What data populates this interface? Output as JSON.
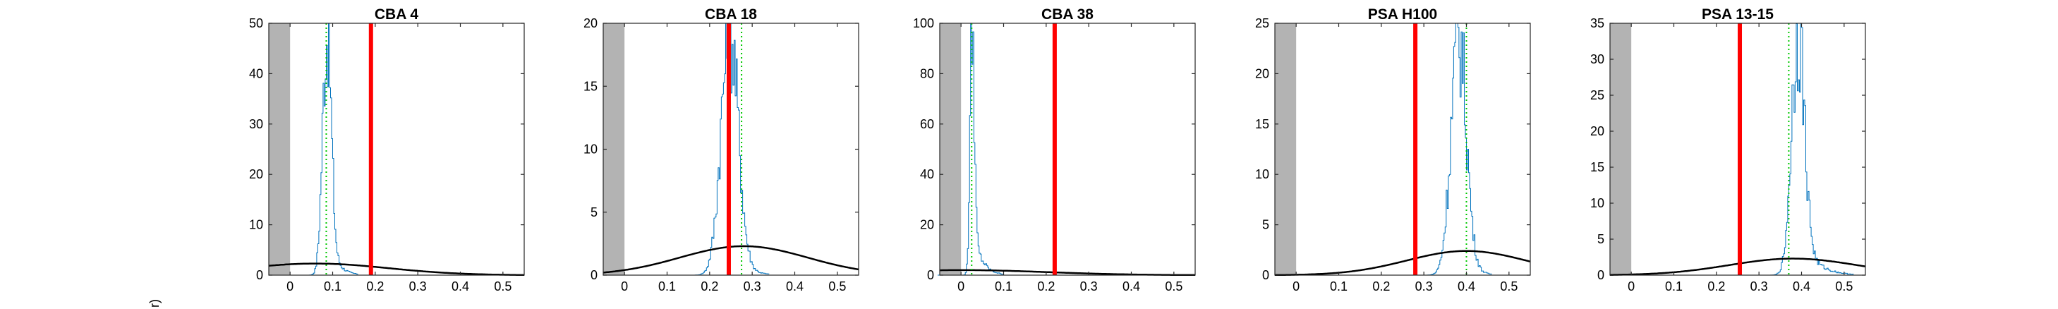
{
  "figure": {
    "partial_label": "r)",
    "colors": {
      "histogram": "#0072bd",
      "threshold_line": "#ff0000",
      "dotted_line": "#00c800",
      "gaussian": "#000000",
      "shaded_region": "#b3b3b3"
    }
  },
  "chart_data": [
    {
      "type": "line",
      "title": "CBA 4",
      "xlabel": "",
      "ylabel": "",
      "xlim": [
        -0.05,
        0.55
      ],
      "ylim": [
        0,
        50
      ],
      "xticks": [
        0,
        0.1,
        0.2,
        0.3,
        0.4,
        0.5
      ],
      "yticks": [
        0,
        10,
        20,
        30,
        40,
        50
      ],
      "grid": false,
      "shaded_region": [
        -0.05,
        0.0
      ],
      "vertical_red_line": 0.19,
      "vertical_dotted_line": 0.085,
      "histogram_peak": {
        "center": 0.085,
        "height": 48,
        "width": 0.01,
        "tail_to": 0.16
      },
      "gaussian_curve": {
        "mean": 0.06,
        "sd": 0.17,
        "peak": 2.3
      }
    },
    {
      "type": "line",
      "title": "CBA 18",
      "xlabel": "",
      "ylabel": "",
      "xlim": [
        -0.05,
        0.55
      ],
      "ylim": [
        0,
        20
      ],
      "xticks": [
        0,
        0.1,
        0.2,
        0.3,
        0.4,
        0.5
      ],
      "yticks": [
        0,
        5,
        10,
        15,
        20
      ],
      "grid": false,
      "shaded_region": [
        -0.05,
        0.0
      ],
      "vertical_red_line": 0.245,
      "vertical_dotted_line": 0.275,
      "histogram_peak": {
        "center": 0.245,
        "height": 19,
        "width": 0.02,
        "tail_to": 0.34
      },
      "gaussian_curve": {
        "mean": 0.28,
        "sd": 0.15,
        "peak": 2.3
      }
    },
    {
      "type": "line",
      "title": "CBA 38",
      "xlabel": "",
      "ylabel": "",
      "xlim": [
        -0.05,
        0.55
      ],
      "ylim": [
        0,
        100
      ],
      "xticks": [
        0,
        0.1,
        0.2,
        0.3,
        0.4,
        0.5
      ],
      "yticks": [
        0,
        20,
        40,
        60,
        80,
        100
      ],
      "grid": false,
      "shaded_region": [
        -0.05,
        0.0
      ],
      "vertical_red_line": 0.22,
      "vertical_dotted_line": 0.025,
      "histogram_peak": {
        "center": 0.025,
        "height": 97,
        "width": 0.005,
        "tail_to": 0.1
      },
      "gaussian_curve": {
        "mean": 0.0,
        "sd": 0.2,
        "peak": 2.0
      }
    },
    {
      "type": "line",
      "title": "PSA H100",
      "xlabel": "",
      "ylabel": "",
      "xlim": [
        -0.05,
        0.55
      ],
      "ylim": [
        0,
        25
      ],
      "xticks": [
        0,
        0.1,
        0.2,
        0.3,
        0.4,
        0.5
      ],
      "yticks": [
        0,
        5,
        10,
        15,
        20,
        25
      ],
      "grid": false,
      "shaded_region": [
        -0.05,
        0.0
      ],
      "vertical_red_line": 0.28,
      "vertical_dotted_line": 0.4,
      "histogram_peak": {
        "center": 0.38,
        "height": 23,
        "width": 0.018,
        "tail_to": 0.46
      },
      "gaussian_curve": {
        "mean": 0.4,
        "sd": 0.14,
        "peak": 2.4
      }
    },
    {
      "type": "line",
      "title": "PSA 13-15",
      "xlabel": "",
      "ylabel": "",
      "xlim": [
        -0.05,
        0.55
      ],
      "ylim": [
        0,
        35
      ],
      "xticks": [
        0,
        0.1,
        0.2,
        0.3,
        0.4,
        0.5
      ],
      "yticks": [
        0,
        5,
        10,
        15,
        20,
        25,
        30,
        35
      ],
      "grid": false,
      "shaded_region": [
        -0.05,
        0.0
      ],
      "vertical_red_line": 0.255,
      "vertical_dotted_line": 0.37,
      "histogram_peak": {
        "center": 0.39,
        "height": 33,
        "width": 0.015,
        "tail_to": 0.52
      },
      "gaussian_curve": {
        "mean": 0.38,
        "sd": 0.15,
        "peak": 2.3
      }
    }
  ]
}
